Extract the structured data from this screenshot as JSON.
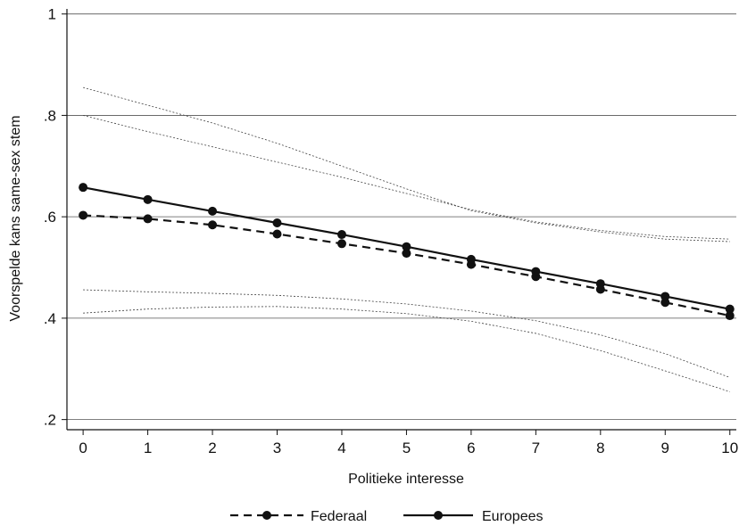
{
  "chart_data": {
    "type": "line",
    "title": "",
    "xlabel": "Politieke interesse",
    "ylabel": "Voorspelde kans same-sex stem",
    "x": [
      0,
      1,
      2,
      3,
      4,
      5,
      6,
      7,
      8,
      9,
      10
    ],
    "x_ticks": [
      "0",
      "1",
      "2",
      "3",
      "4",
      "5",
      "6",
      "7",
      "8",
      "9",
      "10"
    ],
    "y_ticks": [
      {
        "value": 0.2,
        "label": ".2"
      },
      {
        "value": 0.4,
        "label": ".4"
      },
      {
        "value": 0.6,
        "label": ".6"
      },
      {
        "value": 0.8,
        "label": ".8"
      },
      {
        "value": 1.0,
        "label": "1"
      }
    ],
    "xlim": [
      -0.25,
      10.1
    ],
    "ylim": [
      0.18,
      1.01
    ],
    "grid": true,
    "legend_position": "bottom",
    "series": [
      {
        "name": "Federaal",
        "style": "dashed",
        "values": [
          0.603,
          0.596,
          0.584,
          0.566,
          0.547,
          0.528,
          0.506,
          0.482,
          0.457,
          0.431,
          0.405
        ],
        "ci_upper": [
          0.855,
          0.82,
          0.785,
          0.745,
          0.7,
          0.655,
          0.612,
          0.588,
          0.57,
          0.556,
          0.551
        ],
        "ci_lower": [
          0.41,
          0.418,
          0.422,
          0.423,
          0.418,
          0.409,
          0.394,
          0.37,
          0.336,
          0.296,
          0.255
        ]
      },
      {
        "name": "Europees",
        "style": "solid",
        "values": [
          0.658,
          0.634,
          0.611,
          0.588,
          0.565,
          0.541,
          0.516,
          0.492,
          0.468,
          0.443,
          0.418
        ],
        "ci_upper": [
          0.8,
          0.768,
          0.738,
          0.708,
          0.678,
          0.646,
          0.614,
          0.59,
          0.573,
          0.561,
          0.556
        ],
        "ci_lower": [
          0.456,
          0.452,
          0.449,
          0.445,
          0.438,
          0.428,
          0.414,
          0.395,
          0.367,
          0.33,
          0.283
        ]
      }
    ],
    "colors": {
      "line": "#111111",
      "ci": "#444444",
      "grid": "#555555"
    }
  }
}
